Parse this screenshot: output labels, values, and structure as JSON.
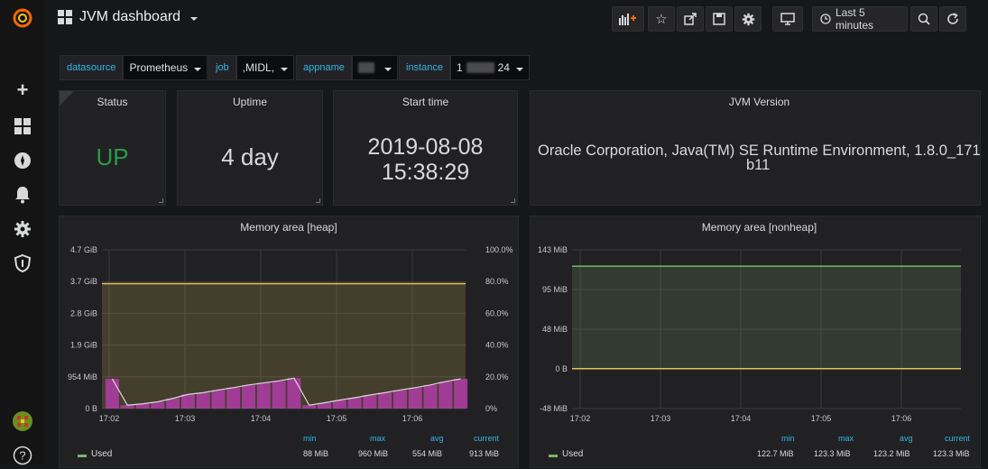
{
  "topbar": {
    "title": "JVM dashboard",
    "time_range": "Last 5 minutes"
  },
  "variables": [
    {
      "label": "datasource",
      "value": "Prometheus"
    },
    {
      "label": "job",
      "value": ",MIDL,"
    },
    {
      "label": "appname",
      "value": ""
    },
    {
      "label": "instance",
      "value_prefix": "1",
      "value_suffix": "24"
    }
  ],
  "stats": {
    "status": {
      "title": "Status",
      "value": "UP",
      "color": "#299c46"
    },
    "uptime": {
      "title": "Uptime",
      "value": "4 day"
    },
    "start_time": {
      "title": "Start time",
      "line1": "2019-08-08",
      "line2": "15:38:29"
    },
    "jvm_version": {
      "title": "JVM Version",
      "line1": "Oracle Corporation, Java(TM) SE Runtime Environment, 1.8.0_171",
      "line2": "b11"
    }
  },
  "legend_headers": {
    "min": "min",
    "max": "max",
    "avg": "avg",
    "current": "current"
  },
  "chart_data": [
    {
      "type": "area",
      "title": "Memory area [heap]",
      "x": [
        "17:02",
        "17:03",
        "17:04",
        "17:05",
        "17:06"
      ],
      "y_ticks": [
        "4.7 GiB",
        "3.7 GiB",
        "2.8 GiB",
        "1.9 GiB",
        "954 MiB",
        "0 B"
      ],
      "y2_ticks": [
        "100.0%",
        "80.0%",
        "60.0%",
        "40.0%",
        "20.0%",
        "0%"
      ],
      "ylim": [
        0,
        4.7
      ],
      "series": [
        {
          "name": "Used",
          "min": "88 MiB",
          "max": "960 MiB",
          "avg": "554 MiB",
          "current": "913 MiB",
          "color": "#7eb26d"
        }
      ],
      "max_line_gib": 3.7,
      "bar_values_gib": [
        0.88,
        0.1,
        0.14,
        0.2,
        0.3,
        0.42,
        0.47,
        0.55,
        0.62,
        0.7,
        0.76,
        0.82,
        0.9,
        0.1,
        0.17,
        0.25,
        0.32,
        0.4,
        0.47,
        0.55,
        0.62,
        0.7,
        0.8,
        0.88
      ],
      "bar_color": "#b03ca8",
      "line_color": "#e5c15a"
    },
    {
      "type": "area",
      "title": "Memory area [nonheap]",
      "x": [
        "17:02",
        "17:03",
        "17:04",
        "17:05",
        "17:06"
      ],
      "y_ticks": [
        "143 MiB",
        "95 MiB",
        "48 MiB",
        "0 B",
        "-48 MiB"
      ],
      "ylim": [
        -48,
        143
      ],
      "series": [
        {
          "name": "Used",
          "min": "122.7 MiB",
          "max": "123.3 MiB",
          "avg": "123.2 MiB",
          "current": "123.3 MiB",
          "color": "#7eb26d"
        }
      ],
      "used_mib": 123.3,
      "zero_line_color": "#e5c15a"
    }
  ]
}
